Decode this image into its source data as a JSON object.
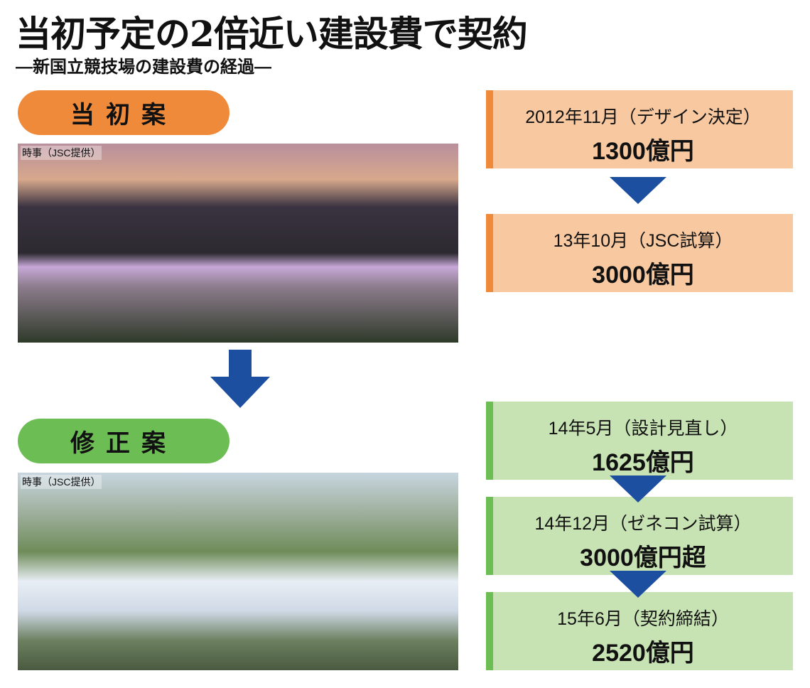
{
  "title": "当初予定の2倍近い建設費で契約",
  "subtitle": "―新国立競技場の建設費の経過―",
  "colors": {
    "orange": "#ef8a3a",
    "orange_light": "#f8c8a0",
    "green": "#6dbd55",
    "green_light": "#c8e3b3",
    "arrow": "#1d4fa0"
  },
  "original_plan": {
    "label": "当初案",
    "photo_credit": "時事（JSC提供）",
    "timeline": [
      {
        "date": "2012年11月（デザイン決定）",
        "cost": "1300億円"
      },
      {
        "date": "13年10月（JSC試算）",
        "cost": "3000億円"
      }
    ]
  },
  "revised_plan": {
    "label": "修正案",
    "photo_credit": "時事（JSC提供）",
    "timeline": [
      {
        "date": "14年5月（設計見直し）",
        "cost": "1625億円"
      },
      {
        "date": "14年12月（ゼネコン試算）",
        "cost": "3000億円超"
      },
      {
        "date": "15年6月（契約締結）",
        "cost": "2520億円"
      }
    ]
  }
}
